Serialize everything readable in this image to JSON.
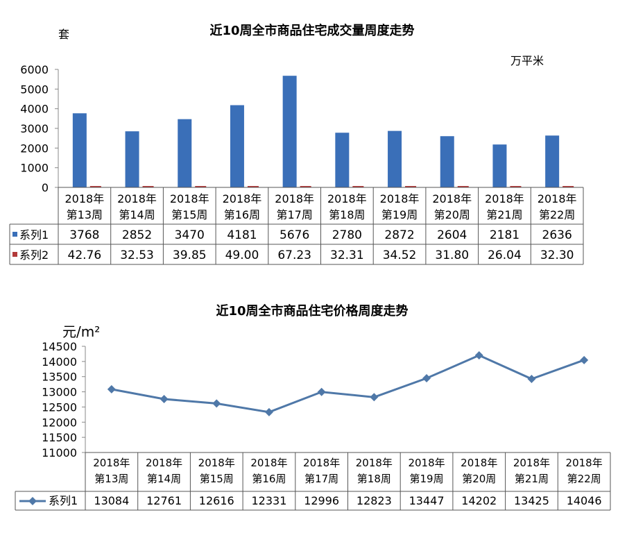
{
  "chart_data": [
    {
      "type": "bar",
      "title": "近10周全市商品住宅成交量周度走势",
      "left_unit": "套",
      "right_unit": "万平米",
      "categories": [
        [
          "2018年",
          "第13周"
        ],
        [
          "2018年",
          "第14周"
        ],
        [
          "2018年",
          "第15周"
        ],
        [
          "2018年",
          "第16周"
        ],
        [
          "2018年",
          "第17周"
        ],
        [
          "2018年",
          "第18周"
        ],
        [
          "2018年",
          "第19周"
        ],
        [
          "2018年",
          "第20周"
        ],
        [
          "2018年",
          "第21周"
        ],
        [
          "2018年",
          "第22周"
        ]
      ],
      "y_ticks": [
        "0",
        "1000",
        "2000",
        "3000",
        "4000",
        "5000",
        "6000"
      ],
      "ylim": [
        0,
        6000
      ],
      "series": [
        {
          "name": "系列1",
          "color": "#3a6fb8",
          "values": [
            3768,
            2852,
            3470,
            4181,
            5676,
            2780,
            2872,
            2604,
            2181,
            2636
          ],
          "labels": [
            "3768",
            "2852",
            "3470",
            "4181",
            "5676",
            "2780",
            "2872",
            "2604",
            "2181",
            "2636"
          ]
        },
        {
          "name": "系列2",
          "color": "#b23a3a",
          "values": [
            42.76,
            32.53,
            39.85,
            49.0,
            67.23,
            32.31,
            34.52,
            31.8,
            26.04,
            32.3
          ],
          "labels": [
            "42.76",
            "32.53",
            "39.85",
            "49.00",
            "67.23",
            "32.31",
            "34.52",
            "31.80",
            "26.04",
            "32.30"
          ]
        }
      ]
    },
    {
      "type": "line",
      "title": "近10周全市商品住宅价格周度走势",
      "unit": "元/m²",
      "categories": [
        [
          "2018年",
          "第13周"
        ],
        [
          "2018年",
          "第14周"
        ],
        [
          "2018年",
          "第15周"
        ],
        [
          "2018年",
          "第16周"
        ],
        [
          "2018年",
          "第17周"
        ],
        [
          "2018年",
          "第18周"
        ],
        [
          "2018年",
          "第19周"
        ],
        [
          "2018年",
          "第20周"
        ],
        [
          "2018年",
          "第21周"
        ],
        [
          "2018年",
          "第22周"
        ]
      ],
      "y_ticks": [
        "11000",
        "11500",
        "12000",
        "12500",
        "13000",
        "13500",
        "14000",
        "14500"
      ],
      "ylim": [
        11000,
        14500
      ],
      "series": [
        {
          "name": "系列1",
          "color": "#4f78a8",
          "values": [
            13084,
            12761,
            12616,
            12331,
            12996,
            12823,
            13447,
            14202,
            13425,
            14046
          ],
          "labels": [
            "13084",
            "12761",
            "12616",
            "12331",
            "12996",
            "12823",
            "13447",
            "14202",
            "13425",
            "14046"
          ]
        }
      ]
    }
  ]
}
